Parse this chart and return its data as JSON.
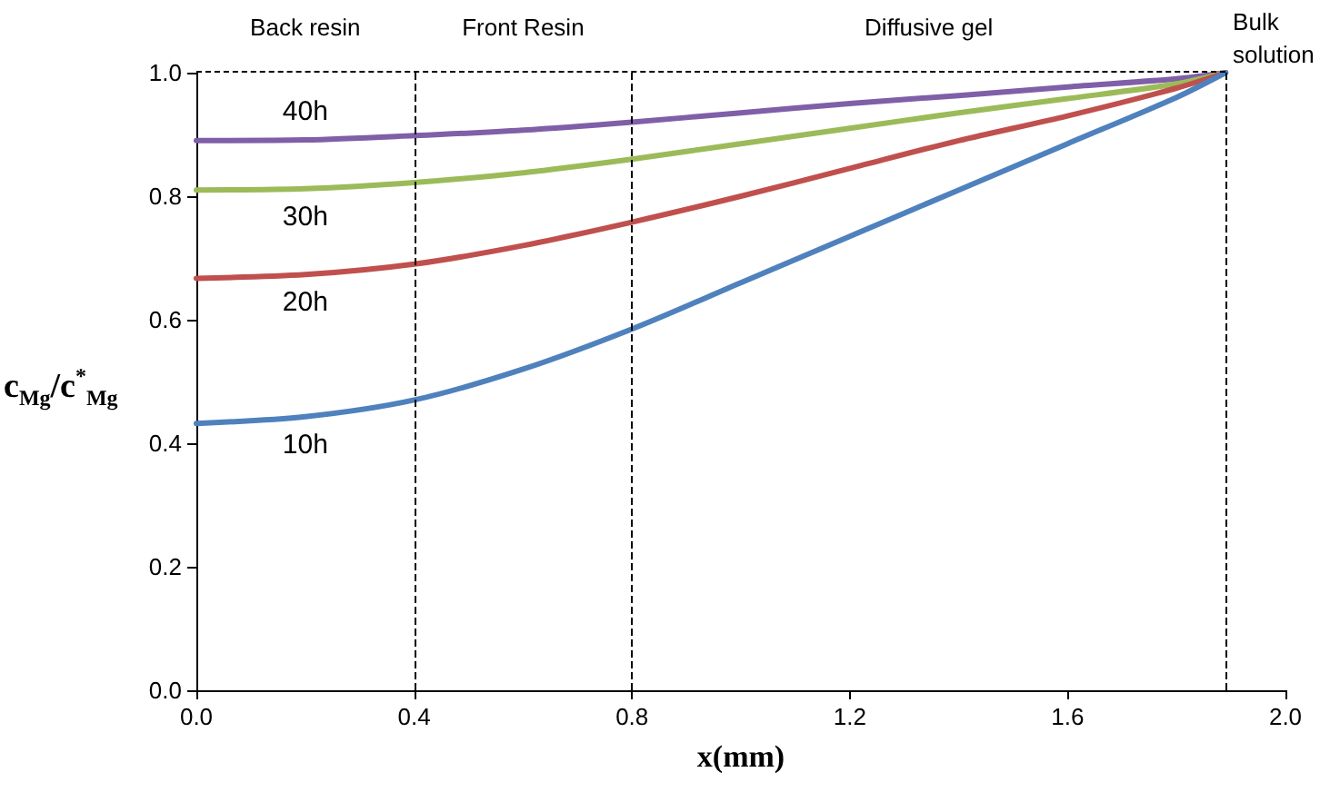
{
  "chart_data": {
    "type": "line",
    "xlabel": "x(mm)",
    "ylabel": "c$_{Mg}$/c$^{*}$$_{Mg}$",
    "x": [
      0,
      0.2,
      0.4,
      0.6,
      0.8,
      1.0,
      1.2,
      1.4,
      1.6,
      1.8,
      1.89
    ],
    "series": [
      {
        "name": "40h",
        "color": "#7f5fa8",
        "values": [
          0.89,
          0.891,
          0.898,
          0.907,
          0.92,
          0.935,
          0.95,
          0.963,
          0.977,
          0.99,
          1.0
        ]
      },
      {
        "name": "30h",
        "color": "#9bbb59",
        "values": [
          0.81,
          0.812,
          0.822,
          0.838,
          0.86,
          0.885,
          0.91,
          0.935,
          0.958,
          0.982,
          1.0
        ]
      },
      {
        "name": "20h",
        "color": "#c0504d",
        "values": [
          0.667,
          0.673,
          0.69,
          0.72,
          0.758,
          0.8,
          0.845,
          0.89,
          0.93,
          0.975,
          1.0
        ]
      },
      {
        "name": "10h",
        "color": "#4f81bd",
        "values": [
          0.432,
          0.443,
          0.47,
          0.52,
          0.585,
          0.66,
          0.735,
          0.81,
          0.885,
          0.96,
          1.0
        ]
      }
    ],
    "xlim": [
      0,
      2.0
    ],
    "xticks": [
      {
        "value": 0,
        "label": "0.0"
      },
      0.4,
      0.8,
      1.2,
      1.6,
      {
        "value": 2.0,
        "label": "2.0"
      }
    ],
    "ylim": [
      0,
      1.0
    ],
    "yticks": [
      {
        "value": 0,
        "label": "0.0"
      },
      0.2,
      0.4,
      0.6,
      0.8,
      {
        "value": 1.0,
        "label": "1.0"
      }
    ],
    "ref_lines": [
      {
        "axis": "x",
        "value": 0.4,
        "line_style": "dashed",
        "color": "#000000"
      },
      {
        "axis": "x",
        "value": 0.8,
        "line_style": "dashed",
        "color": "#000000"
      },
      {
        "axis": "x",
        "value": 1.89,
        "label": "Bulk solution",
        "line_style": "dashed",
        "color": "#000000"
      }
    ],
    "annotations": [
      "Back resin",
      "Front Resin",
      "Diffusive gel"
    ],
    "grid": false,
    "legend": false,
    "marker": "none",
    "line_style": "solid"
  }
}
